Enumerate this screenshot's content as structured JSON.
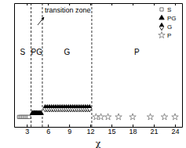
{
  "chart_data": {
    "type": "scatter",
    "x_label": "χ",
    "xlim": [
      1.2,
      25
    ],
    "xticks": [
      3,
      6,
      9,
      12,
      15,
      18,
      21,
      24
    ],
    "ylim": [
      0,
      10
    ],
    "tick_labels": "x",
    "legend": "upper right",
    "vlines": [
      3.6,
      5.2,
      12.2
    ],
    "annotations": [
      "S",
      "PG",
      "G",
      "P",
      "transition zone"
    ],
    "series": [
      {
        "name": "S",
        "color": "#555555",
        "marker": "square",
        "x": [
          1.9,
          2.1,
          2.3,
          2.5,
          2.7,
          2.9,
          3.1,
          3.3
        ],
        "values": [
          0.8,
          0.8,
          0.8,
          0.8,
          0.8,
          0.8,
          0.8,
          0.8
        ]
      },
      {
        "name": "PG",
        "color": "#000000",
        "marker": "triangle",
        "x": [
          3.8,
          4.0,
          4.2,
          4.4,
          4.6,
          4.8,
          5.0
        ],
        "values": [
          1.1,
          1.1,
          1.1,
          1.1,
          1.1,
          1.1,
          1.1
        ]
      },
      {
        "name": "G",
        "color": "#000000",
        "marker": "diamond",
        "x": [
          5.6,
          5.9,
          6.2,
          6.5,
          6.8,
          7.1,
          7.4,
          7.7,
          8.0,
          8.3,
          8.6,
          8.9,
          9.2,
          9.5,
          9.8,
          10.1,
          10.4,
          10.7,
          11.0,
          11.3,
          11.6,
          11.9
        ],
        "values": [
          1.5,
          1.5,
          1.5,
          1.5,
          1.5,
          1.5,
          1.5,
          1.5,
          1.5,
          1.5,
          1.5,
          1.5,
          1.5,
          1.5,
          1.5,
          1.5,
          1.5,
          1.5,
          1.5,
          1.5,
          1.5,
          1.5
        ]
      },
      {
        "name": "P",
        "color": "#777777",
        "marker": "star",
        "x": [
          12.8,
          13.5,
          14.5,
          16,
          18,
          20.5,
          22.5,
          24
        ],
        "values": [
          0.8,
          0.8,
          0.8,
          0.8,
          0.8,
          0.8,
          0.8,
          0.8
        ]
      }
    ]
  }
}
